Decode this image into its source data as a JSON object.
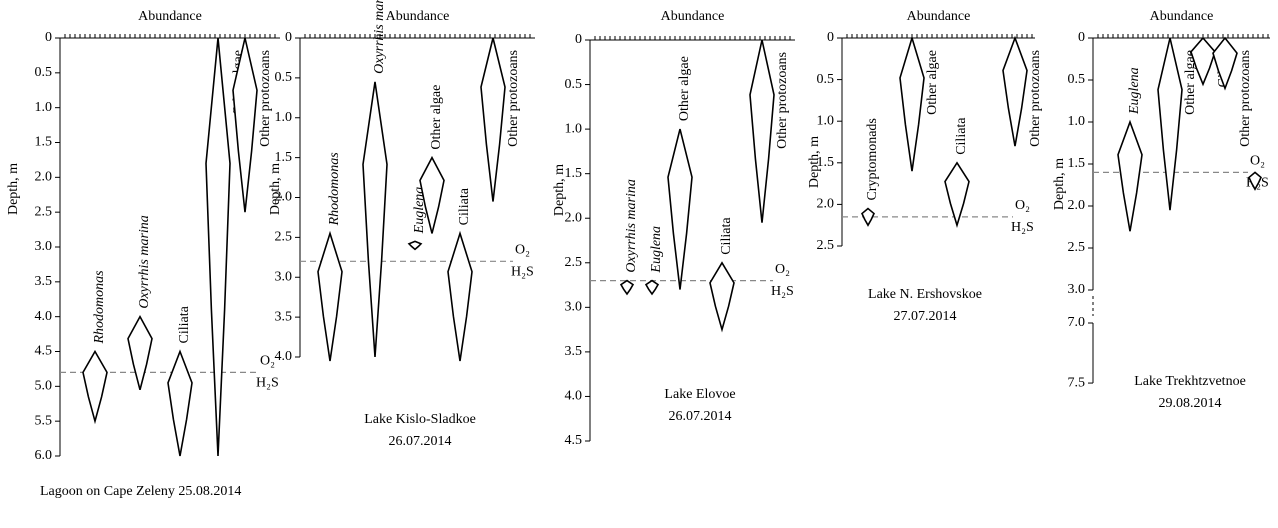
{
  "panels": [
    {
      "title": "Abundance",
      "ylabel": "Depth, m",
      "caption": [
        "Lagoon on Cape Zeleny 25.08.2014"
      ],
      "yticks": [
        0,
        0.5,
        {
          "value": 1,
          "label": "1.0"
        },
        1.5,
        {
          "value": 2,
          "label": "2.0"
        },
        2.5,
        {
          "value": 3,
          "label": "3.0"
        },
        3.5,
        {
          "value": 4,
          "label": "4.0"
        },
        4.5,
        {
          "value": 5,
          "label": "5.0"
        },
        5.5,
        {
          "value": 6,
          "label": "6.0"
        }
      ],
      "ylim": [
        0,
        6
      ],
      "chemocline": 4.8,
      "upper": "O₂",
      "lower": "H₂S",
      "taxa": [
        {
          "name": "Rhodomonas",
          "italic": true,
          "range": [
            4.5,
            5.5
          ]
        },
        {
          "name": "Oxyrrhis marina",
          "italic": true,
          "range": [
            4.0,
            5.05
          ]
        },
        {
          "name": "Ciliata",
          "italic": false,
          "range": [
            4.5,
            6.0
          ]
        },
        {
          "name": "Other algae",
          "italic": false,
          "range": [
            0,
            6.0
          ]
        },
        {
          "name": "Other protozoans",
          "italic": false,
          "range": [
            0,
            2.5
          ]
        }
      ]
    },
    {
      "title": "Abundance",
      "ylabel": "Depth, m",
      "caption": [
        "Lake  Kislo-Sladkoe",
        "26.07.2014"
      ],
      "yticks": [
        0,
        0.5,
        {
          "value": 1,
          "label": "1.0"
        },
        1.5,
        {
          "value": 2,
          "label": "2.0"
        },
        2.5,
        {
          "value": 3,
          "label": "3.0"
        },
        3.5,
        {
          "value": 4,
          "label": "4.0"
        }
      ],
      "ylim": [
        0,
        4
      ],
      "chemocline": 2.8,
      "upper": "O₂",
      "lower": "H₂S",
      "taxa": [
        {
          "name": "Rhodomonas",
          "italic": true,
          "range": [
            2.45,
            4.05
          ]
        },
        {
          "name": "Oxyrrhis marina",
          "italic": true,
          "range": [
            0.55,
            4.0
          ]
        },
        {
          "name": "Euglena",
          "italic": true,
          "range": [
            2.55,
            2.65
          ]
        },
        {
          "name": "Other algae",
          "italic": false,
          "range": [
            1.5,
            2.45
          ]
        },
        {
          "name": "Ciliata",
          "italic": false,
          "range": [
            2.45,
            4.05
          ]
        },
        {
          "name": "Other protozoans",
          "italic": false,
          "range": [
            0,
            2.05
          ]
        }
      ]
    },
    {
      "title": "Abundance",
      "ylabel": "Depth, m",
      "caption": [
        "Lake Elovoe",
        "26.07.2014"
      ],
      "yticks": [
        0,
        0.5,
        {
          "value": 1,
          "label": "1.0"
        },
        1.5,
        {
          "value": 2,
          "label": "2.0"
        },
        2.5,
        {
          "value": 3,
          "label": "3.0"
        },
        3.5,
        {
          "value": 4,
          "label": "4.0"
        },
        4.5
      ],
      "ylim": [
        0,
        4.5
      ],
      "chemocline": 2.7,
      "upper": "O₂",
      "lower": "H₂S",
      "taxa": [
        {
          "name": "Oxyrrhis marina",
          "italic": true,
          "range": [
            2.7,
            2.85
          ]
        },
        {
          "name": "Euglena",
          "italic": true,
          "range": [
            2.7,
            2.85
          ]
        },
        {
          "name": "Other algae",
          "italic": false,
          "range": [
            1.0,
            2.8
          ]
        },
        {
          "name": "Ciliata",
          "italic": false,
          "range": [
            2.5,
            3.25
          ]
        },
        {
          "name": "Other protozoans",
          "italic": false,
          "range": [
            0,
            2.05
          ]
        }
      ]
    },
    {
      "title": "Abundance",
      "ylabel": "Depth, m",
      "caption": [
        "Lake N. Ershovskoe",
        "27.07.2014"
      ],
      "yticks": [
        0,
        0.5,
        {
          "value": 1,
          "label": "1.0"
        },
        1.5,
        {
          "value": 2,
          "label": "2.0"
        },
        2.5
      ],
      "ylim": [
        0,
        2.5
      ],
      "chemocline": 2.15,
      "upper": "O₂",
      "lower": "H₂S",
      "taxa": [
        {
          "name": "Cryptomonads",
          "italic": false,
          "range": [
            2.05,
            2.25
          ]
        },
        {
          "name": "Other algae",
          "italic": false,
          "range": [
            0,
            1.6
          ]
        },
        {
          "name": "Ciliata",
          "italic": false,
          "range": [
            1.5,
            2.25
          ]
        },
        {
          "name": "Other protozoans",
          "italic": false,
          "range": [
            0,
            1.3
          ]
        }
      ]
    },
    {
      "title": "Abundance",
      "ylabel": "Depth, m",
      "caption": [
        "Lake Trekhtzvetnoe",
        "29.08.2014"
      ],
      "yticks": [
        0,
        0.5,
        {
          "value": 1,
          "label": "1.0"
        },
        1.5,
        {
          "value": 2,
          "label": "2.0"
        },
        2.5,
        {
          "value": 3,
          "label": "3.0"
        },
        {
          "value": 7,
          "label": "7.0"
        },
        7.5
      ],
      "ylim": [
        0,
        7.5
      ],
      "axis_break": [
        3,
        7
      ],
      "chemocline": 1.6,
      "upper": "O₂",
      "lower": "H₂S",
      "taxa": [
        {
          "name": "Euglena",
          "italic": true,
          "range": [
            1.0,
            2.3
          ]
        },
        {
          "name": "Other algae",
          "italic": false,
          "range": [
            0,
            2.05
          ]
        },
        {
          "name": "Ciliata",
          "italic": false,
          "range": [
            0,
            0.55
          ]
        },
        {
          "name": "Other protozoans",
          "italic": false,
          "range": [
            0,
            0.6
          ]
        },
        {
          "range": [
            1.6,
            1.8
          ]
        }
      ]
    }
  ]
}
